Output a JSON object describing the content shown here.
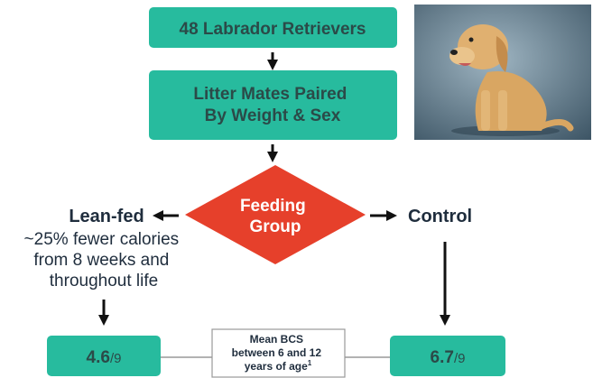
{
  "boxes": {
    "top": "48 Labrador Retrievers",
    "paired": [
      "Litter Mates Paired",
      "By Weight & Sex"
    ]
  },
  "decision": [
    "Feeding",
    "Group"
  ],
  "left": {
    "label": "Lean-fed",
    "description": [
      "~25% fewer calories",
      "from 8 weeks and",
      "throughout life"
    ],
    "result": {
      "value": "4.6",
      "scale": "/9"
    }
  },
  "right": {
    "label": "Control",
    "result": {
      "value": "6.7",
      "scale": "/9"
    }
  },
  "note": {
    "lines": [
      "Mean BCS",
      "between 6 and 12",
      "years of age"
    ],
    "footnote": "1"
  }
}
